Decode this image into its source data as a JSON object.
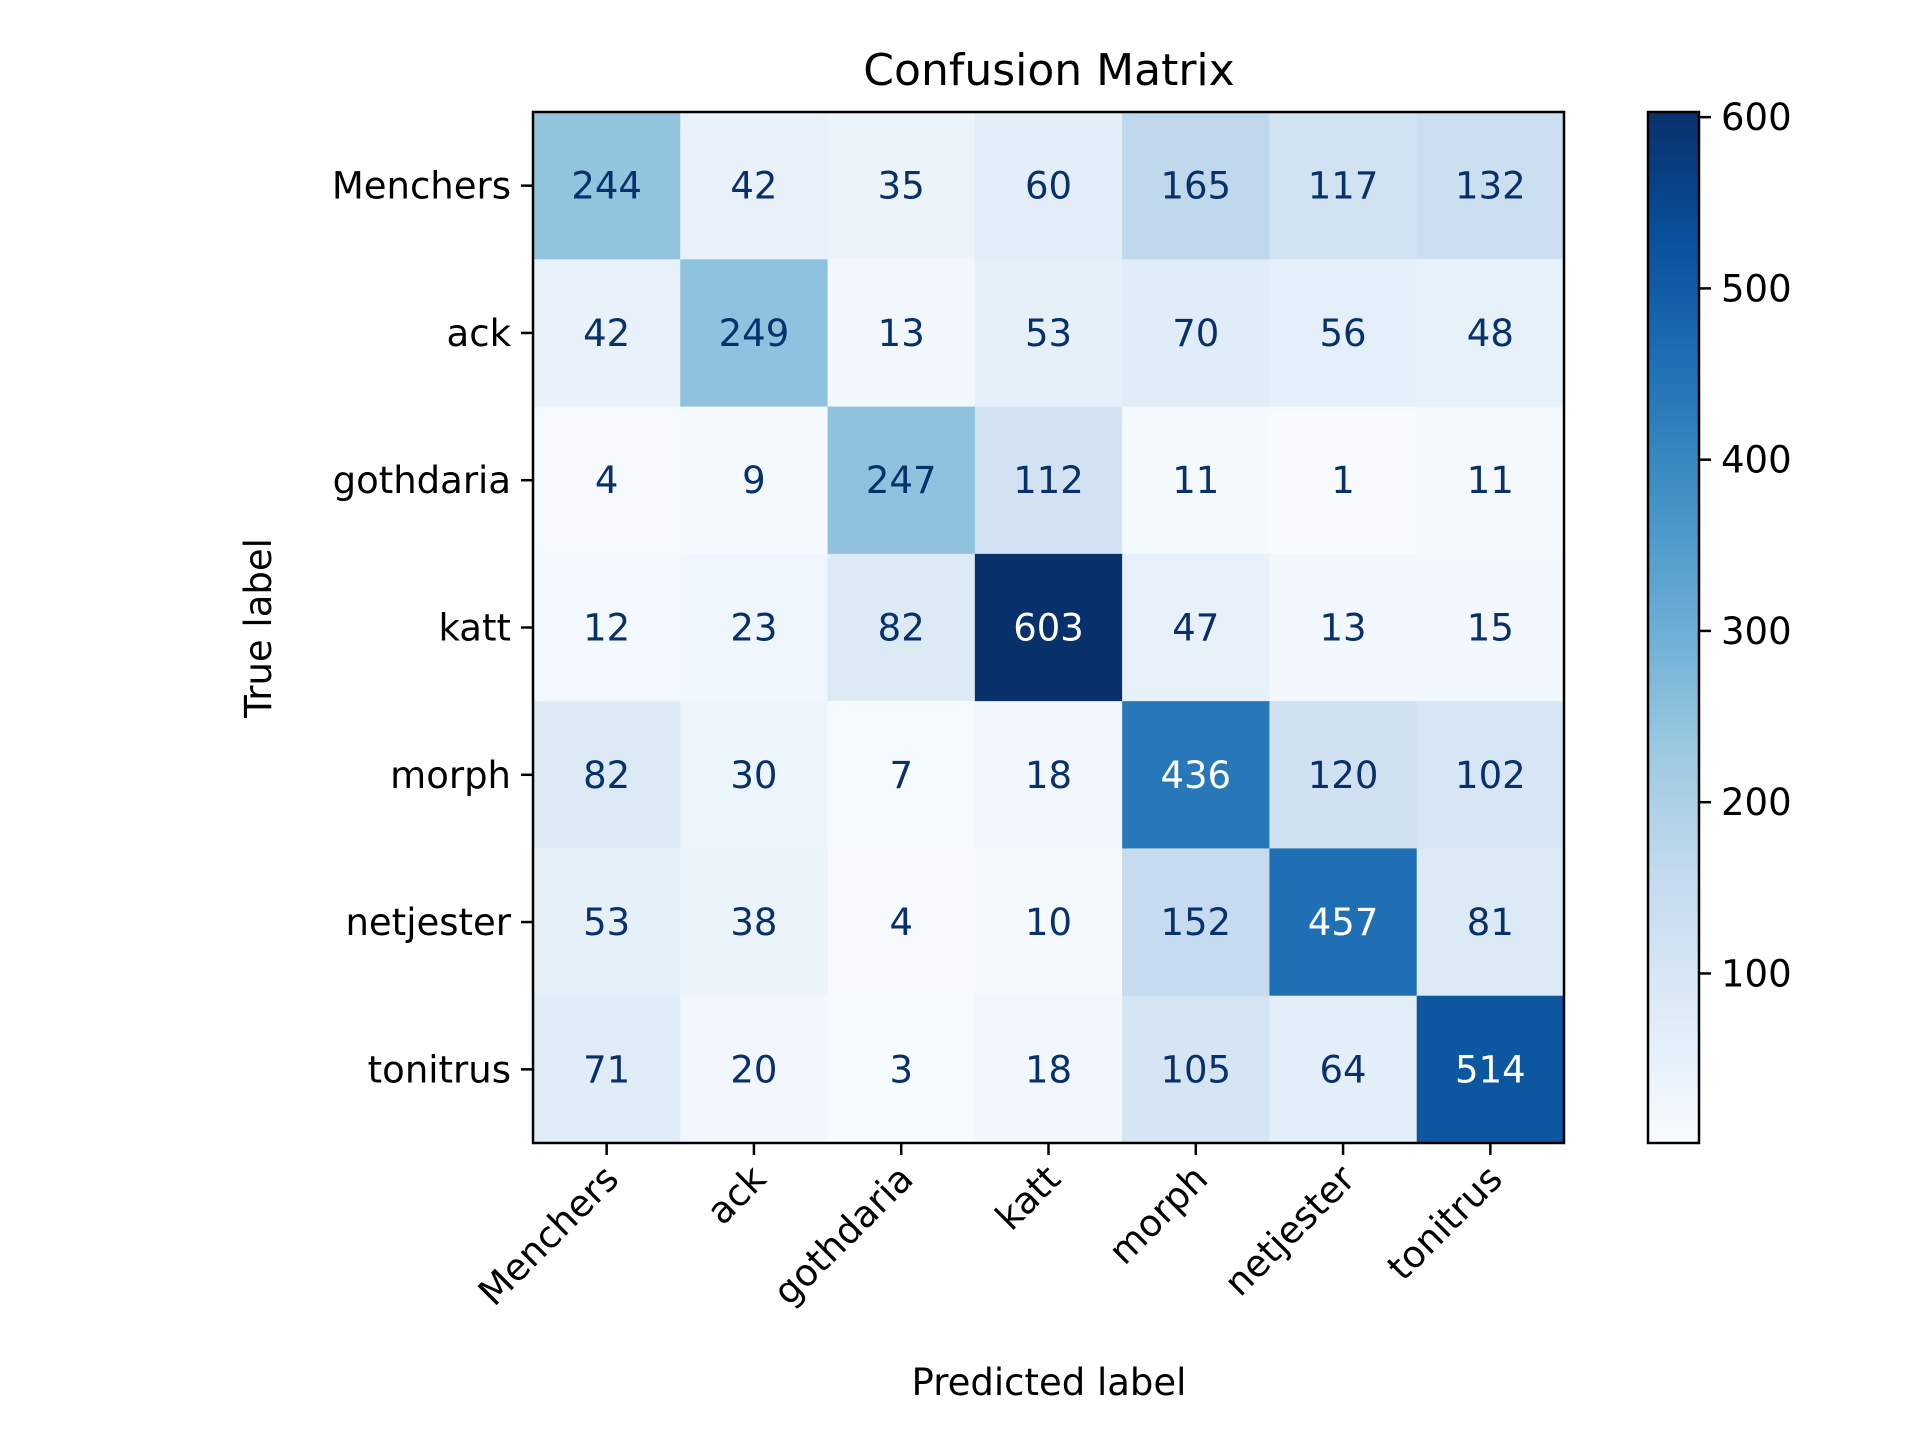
{
  "chart_data": {
    "type": "heatmap",
    "title": "Confusion Matrix",
    "xlabel": "Predicted label",
    "ylabel": "True label",
    "x_categories": [
      "Menchers",
      "ack",
      "gothdaria",
      "katt",
      "morph",
      "netjester",
      "tonitrus"
    ],
    "y_categories": [
      "Menchers",
      "ack",
      "gothdaria",
      "katt",
      "morph",
      "netjester",
      "tonitrus"
    ],
    "values": [
      [
        244,
        42,
        35,
        60,
        165,
        117,
        132
      ],
      [
        42,
        249,
        13,
        53,
        70,
        56,
        48
      ],
      [
        4,
        9,
        247,
        112,
        11,
        1,
        11
      ],
      [
        12,
        23,
        82,
        603,
        47,
        13,
        15
      ],
      [
        82,
        30,
        7,
        18,
        436,
        120,
        102
      ],
      [
        53,
        38,
        4,
        10,
        152,
        457,
        81
      ],
      [
        71,
        20,
        3,
        18,
        105,
        64,
        514
      ]
    ],
    "colormap": "Blues",
    "colorbar": {
      "range": [
        1,
        603
      ],
      "ticks": [
        100,
        200,
        300,
        400,
        500,
        600
      ]
    },
    "grid": false
  }
}
